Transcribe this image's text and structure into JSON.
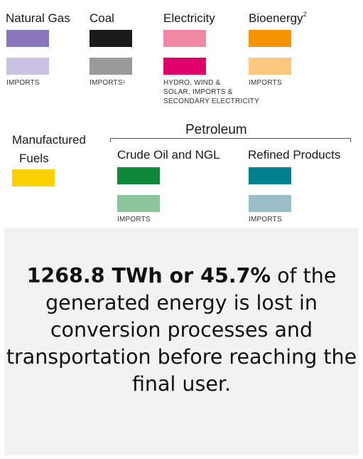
{
  "legend": {
    "natural_gas": {
      "label": "Natural Gas",
      "color": "#8877bb",
      "imports_label": "IMPORTS",
      "imports_color": "#c9c2e3"
    },
    "coal": {
      "label": "Coal",
      "color": "#1a1a1a",
      "imports_label": "IMPORTS",
      "imports_sup": "1",
      "imports_color": "#9a9a9a"
    },
    "electricity": {
      "label": "Electricity",
      "color": "#f087a3",
      "secondary_label_lines": [
        "HYDRO, WIND &",
        "SOLAR, IMPORTS &",
        "SECONDARY ELECTRICITY"
      ],
      "secondary_color": "#e0006a"
    },
    "bioenergy": {
      "label": "Bioenergy",
      "sup": "2",
      "color": "#f59300",
      "imports_label": "IMPORTS",
      "imports_color": "#fcc880"
    },
    "manufactured_fuels": {
      "label_lines": [
        "Manufactured",
        "Fuels"
      ],
      "color": "#ffd000"
    },
    "petroleum": {
      "label": "Petroleum",
      "crude": {
        "label": "Crude Oil and NGL",
        "color": "#0f8a3c",
        "imports_label": "IMPORTS",
        "imports_color": "#8cc59b"
      },
      "refined": {
        "label": "Refined Products",
        "color": "#008090",
        "imports_label": "IMPORTS",
        "imports_color": "#9bbfc9"
      }
    }
  },
  "callout": {
    "bold_text": "1268.8 TWh or 45.7%",
    "text": " of the generated energy is lost in conversion processes and transportation before reaching the final user."
  }
}
